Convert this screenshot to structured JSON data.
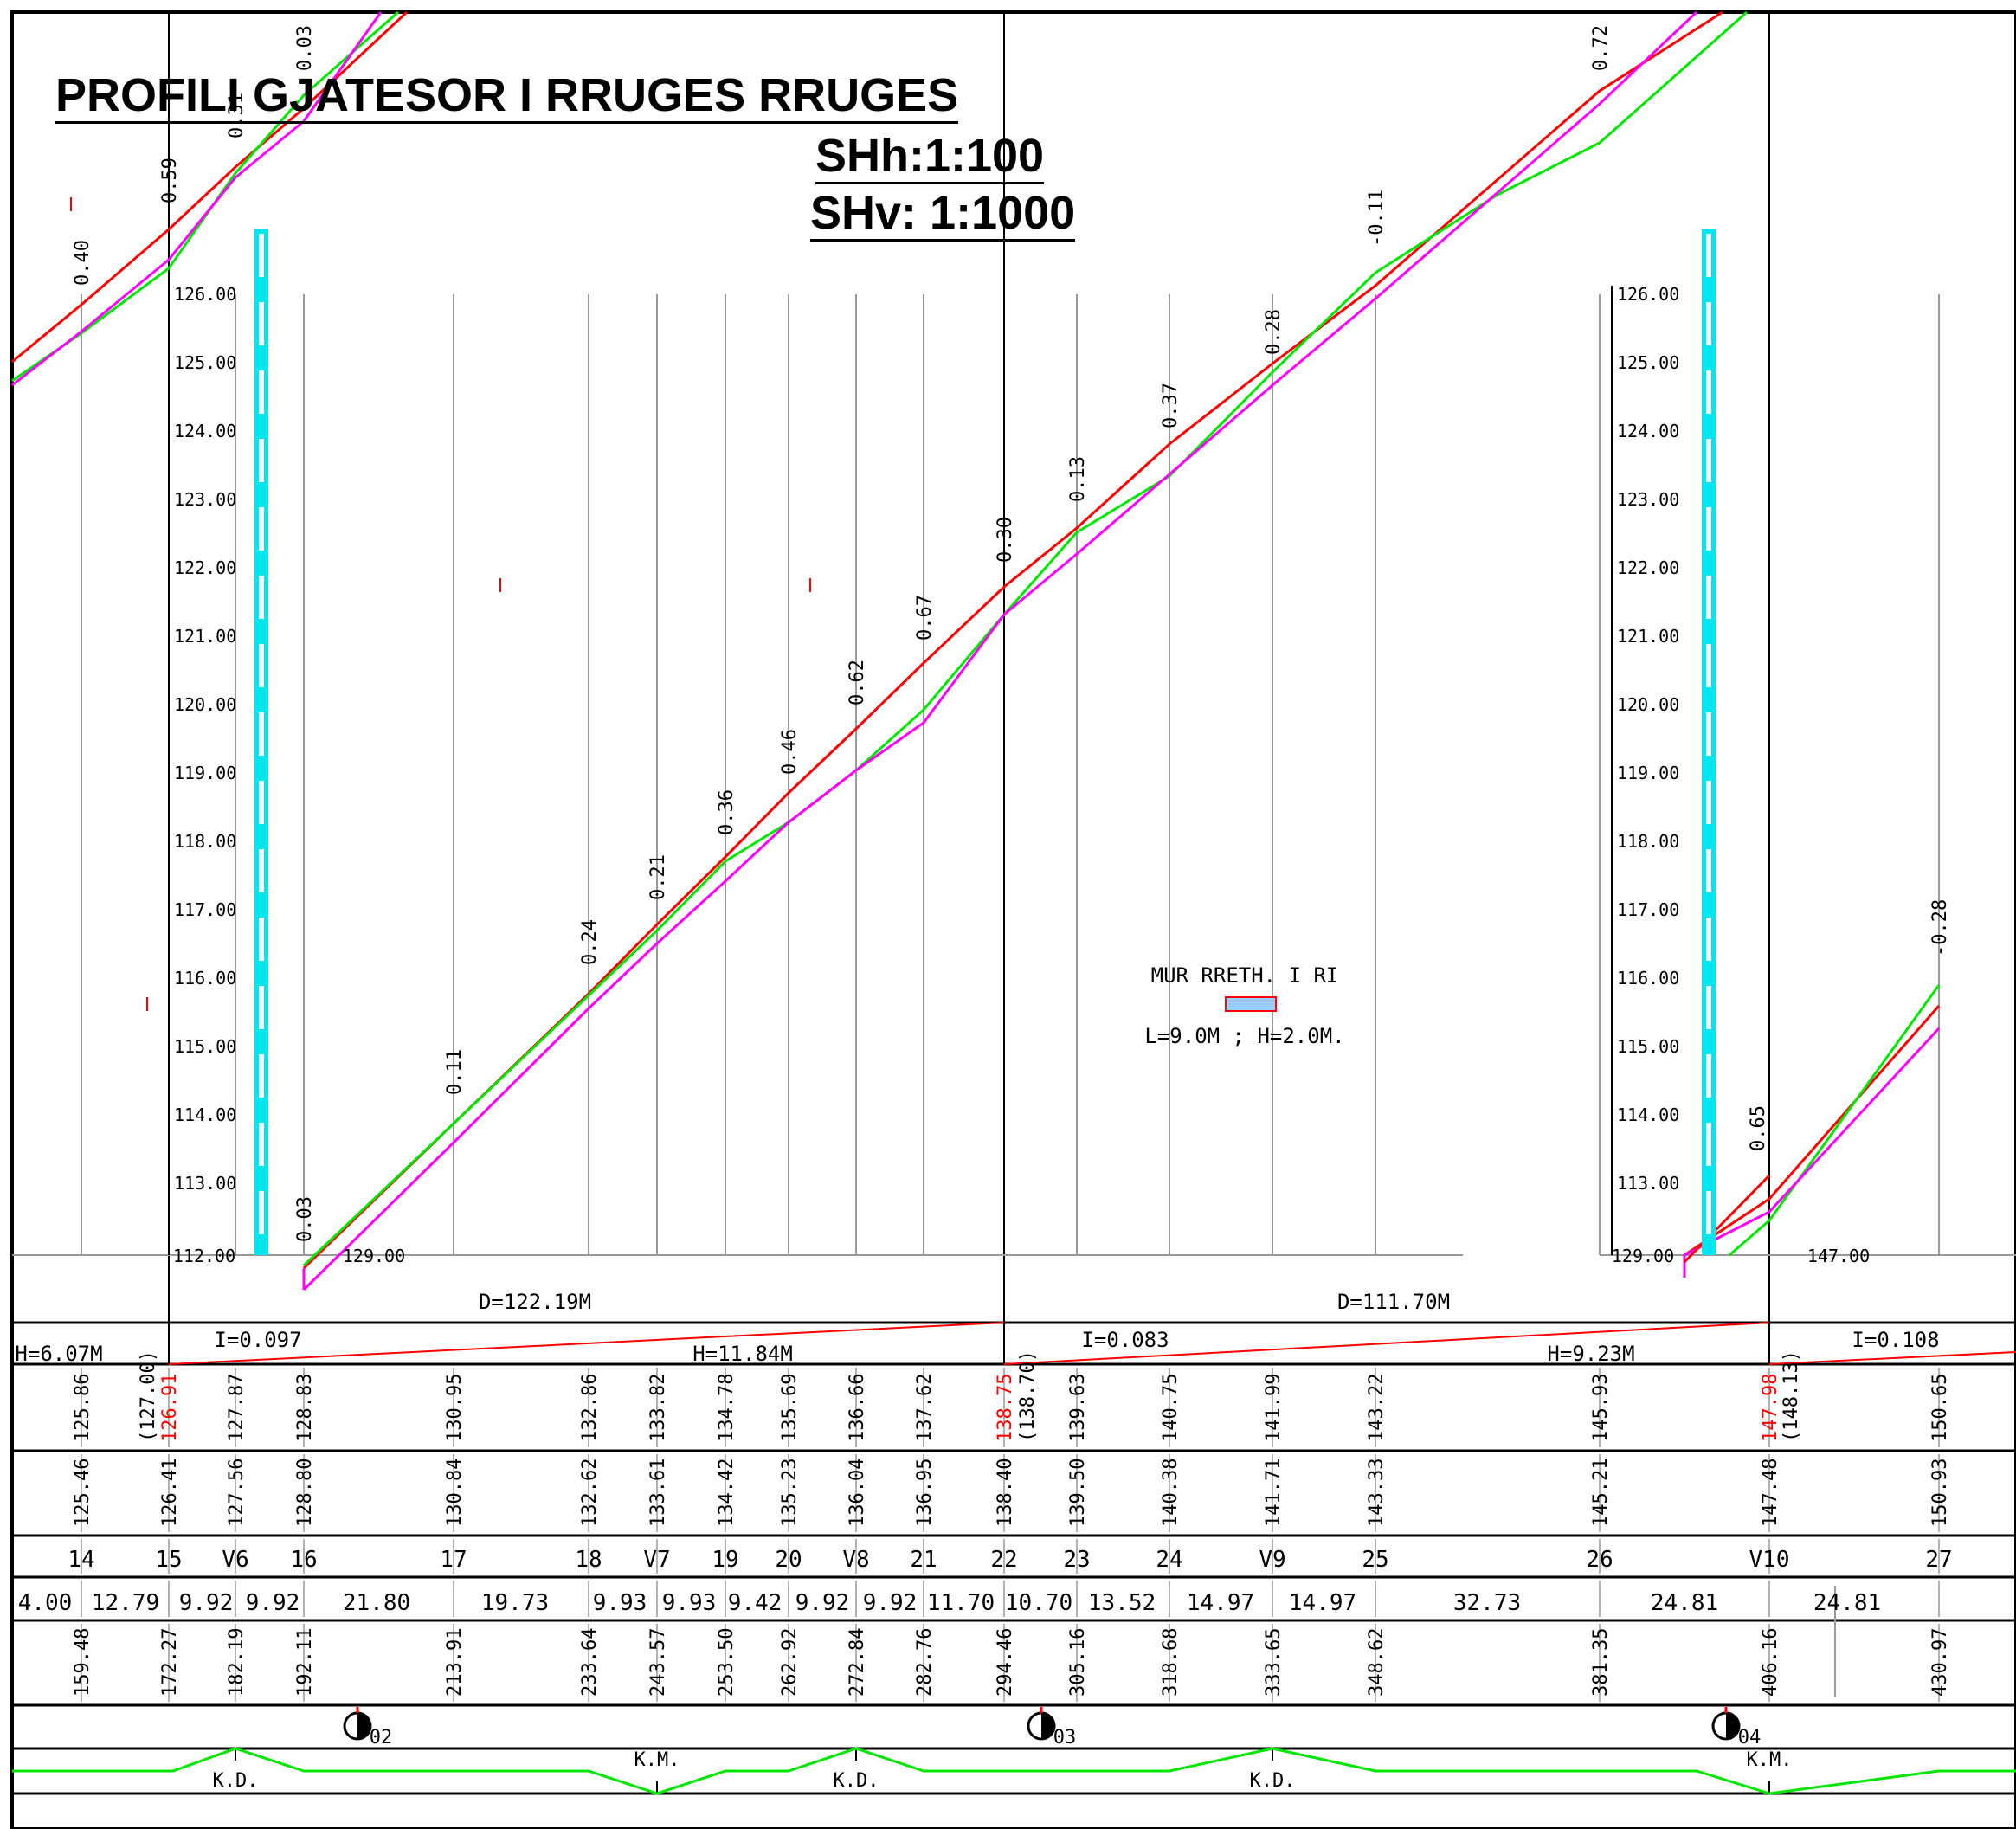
{
  "title": "PROFILI GJATESOR I RRUGES  RRUGES",
  "scale_h": "SHh:1:100",
  "scale_v": "SHv: 1:1000",
  "colors": {
    "design_line": "#ff0000",
    "ground_line": "#00e600",
    "secondary_line": "#ff00ff",
    "pipe_marker": "#00e5ee",
    "grid": "#999999",
    "ink": "#000000"
  },
  "elevation_scale_left": [
    "126.00",
    "125.00",
    "124.00",
    "123.00",
    "122.00",
    "121.00",
    "120.00",
    "119.00",
    "118.00",
    "117.00",
    "116.00",
    "115.00",
    "114.00",
    "113.00"
  ],
  "elevation_scale_right": [
    "126.00",
    "125.00",
    "124.00",
    "123.00",
    "122.00",
    "121.00",
    "120.00",
    "119.00",
    "118.00",
    "117.00",
    "116.00",
    "115.00",
    "114.00",
    "113.00"
  ],
  "datum_labels": [
    "112.00",
    "129.00",
    "129.00",
    "147.00"
  ],
  "wall_note": {
    "title": "MUR  RRETH. I RI",
    "dims": "L=9.0M  ;  H=2.0M."
  },
  "segments": [
    {
      "d": "D=122.19M",
      "i": "I=0.097",
      "h": "H=11.84M"
    },
    {
      "d": "D=111.70M",
      "i": "I=0.083",
      "h": "H=9.23M"
    },
    {
      "i": "I=0.108"
    }
  ],
  "h_left": "H=6.07M",
  "depths": [
    "0.40",
    "0.59",
    "0.31",
    "0.03",
    "0.03",
    "0.11",
    "0.24",
    "0.21",
    "0.36",
    "0.46",
    "0.62",
    "0.67",
    "0.30",
    "0.13",
    "0.37",
    "0.28",
    "-0.11",
    "0.72",
    "0.65",
    "-0.28"
  ],
  "design_elevations": [
    "125.86",
    "(127.00)",
    "126.91",
    "127.87",
    "128.83",
    "130.95",
    "132.86",
    "133.82",
    "134.78",
    "135.69",
    "136.66",
    "137.62",
    "138.75",
    "(138.70)",
    "139.63",
    "140.75",
    "141.99",
    "143.22",
    "145.93",
    "147.98",
    "(148.13)",
    "150.65"
  ],
  "ground_elevations": [
    "125.46",
    "126.41",
    "127.56",
    "128.80",
    "130.84",
    "132.62",
    "133.61",
    "134.42",
    "135.23",
    "136.04",
    "136.95",
    "138.40",
    "139.50",
    "140.38",
    "141.71",
    "143.33",
    "145.21",
    "147.48",
    "150.93"
  ],
  "stations": [
    "14",
    "15",
    "V6",
    "16",
    "17",
    "18",
    "V7",
    "19",
    "20",
    "V8",
    "21",
    "22",
    "23",
    "24",
    "V9",
    "25",
    "26",
    "V10",
    "27"
  ],
  "distances": [
    "4.00",
    "12.79",
    "9.92",
    "9.92",
    "21.80",
    "19.73",
    "9.93",
    "9.93",
    "9.42",
    "9.92",
    "9.92",
    "11.70",
    "10.70",
    "13.52",
    "14.97",
    "14.97",
    "32.73",
    "24.81",
    "24.81"
  ],
  "chainages": [
    "159.48",
    "172.27",
    "182.19",
    "192.11",
    "213.91",
    "233.64",
    "243.57",
    "253.50",
    "262.92",
    "272.84",
    "282.76",
    "294.46",
    "305.16",
    "318.68",
    "333.65",
    "348.62",
    "381.35",
    "406.16",
    "430.97"
  ],
  "curve_markers": [
    "02",
    "03",
    "04"
  ],
  "curve_labels": [
    "K.D.",
    "K.M.",
    "K.D.",
    "K.D.",
    "K.M."
  ]
}
